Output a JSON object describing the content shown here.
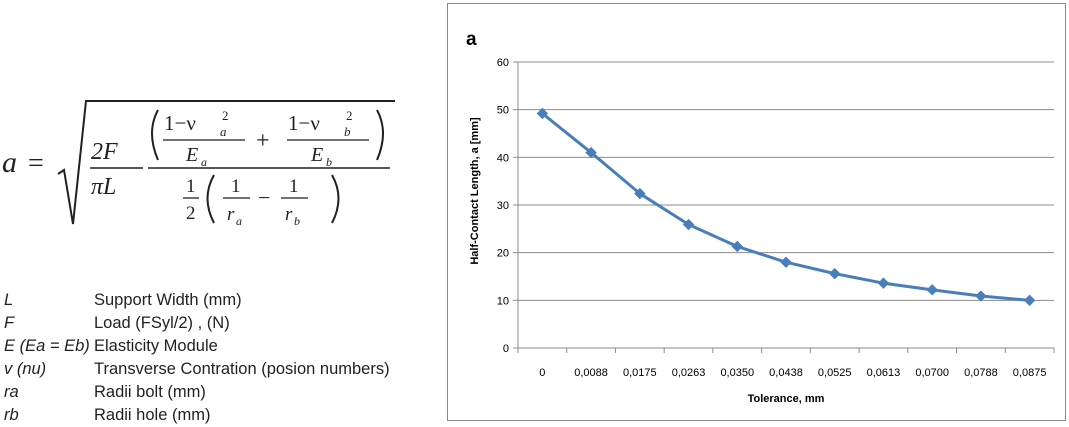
{
  "formula": {
    "lhs": "a",
    "equals": "=",
    "two_F": "2F",
    "pi_L": "πL",
    "one_minus": "1−ν",
    "sub_a": "a",
    "sub_b": "b",
    "sup_2": "2",
    "E": "E",
    "plus": "+",
    "one": "1",
    "two": "2",
    "r": "r",
    "minus": "−"
  },
  "legend": [
    {
      "symbol": "L",
      "description": "Support Width (mm)"
    },
    {
      "symbol": "F",
      "description": "Load (FSyl/2) , (N)"
    },
    {
      "symbol": "E (Ea = Eb)",
      "description": "Elasticity Module"
    },
    {
      "symbol": "v (nu)",
      "description": "Transverse Contration (posion numbers)"
    },
    {
      "symbol": "ra",
      "description": "Radii bolt (mm)"
    },
    {
      "symbol": "rb",
      "description": "Radii hole (mm)"
    }
  ],
  "chart_data": {
    "type": "line",
    "panel_label": "a",
    "xlabel": "Tolerance, mm",
    "ylabel": "Half-Contact Length, a [mm]",
    "categories": [
      "0",
      "0,0088",
      "0,0175",
      "0,0263",
      "0,0350",
      "0,0438",
      "0,0525",
      "0,0613",
      "0,0700",
      "0,0788",
      "0,0875"
    ],
    "values": [
      49.2,
      41.0,
      32.4,
      25.9,
      21.3,
      18.0,
      15.6,
      13.6,
      12.2,
      10.9,
      10.0
    ],
    "ylim": [
      0,
      60
    ],
    "yticks": [
      "0",
      "10",
      "20",
      "30",
      "40",
      "50",
      "60"
    ],
    "grid": true,
    "marker": "diamond",
    "color": "#4a7ebb"
  }
}
